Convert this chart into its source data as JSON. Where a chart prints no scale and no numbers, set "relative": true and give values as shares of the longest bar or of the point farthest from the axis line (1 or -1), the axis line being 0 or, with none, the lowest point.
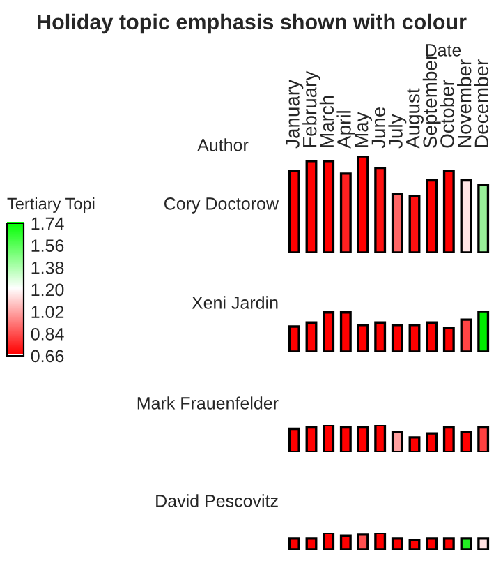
{
  "chart_data": [
    {
      "type": "bar",
      "title": "Holiday topic emphasis shown with colour",
      "xlabel": "Date",
      "annotations": [
        "Author"
      ],
      "ylabel": "Cory Doctorow",
      "relative": true,
      "clabel": "Tertiary Topi",
      "clim": [
        0.66,
        1.74
      ],
      "cticks": [
        {
          "value": 0.66,
          "label": "0.66"
        },
        {
          "value": 0.84,
          "label": "0.84"
        },
        {
          "value": 1.02,
          "label": "1.02"
        },
        {
          "value": 1.2,
          "label": "1.20"
        },
        {
          "value": 1.38,
          "label": "1.38"
        },
        {
          "value": 1.56,
          "label": "1.56"
        },
        {
          "value": 1.74,
          "label": "1.74"
        }
      ],
      "categories": [
        "January",
        "February",
        "March",
        "April",
        "May",
        "June",
        "July",
        "August",
        "September",
        "October",
        "November",
        "December"
      ],
      "values": [
        0.85,
        0.95,
        0.95,
        0.82,
        1.0,
        0.88,
        0.61,
        0.59,
        0.75,
        0.85,
        0.75,
        0.7
      ],
      "colors": [
        "#ff0000",
        "#ff0000",
        "#ff0000",
        "#ff2020",
        "#ff0000",
        "#ff1010",
        "#ff6666",
        "#ff1010",
        "#ff0000",
        "#ff0000",
        "#ffe6e6",
        "#99f099"
      ]
    },
    {
      "type": "bar",
      "ylabel": "Xeni Jardin",
      "relative": true,
      "categories": [
        null,
        null,
        null,
        null,
        null,
        null,
        null,
        null,
        null,
        null,
        null,
        null
      ],
      "values": [
        0.62,
        0.72,
        0.97,
        0.97,
        0.66,
        0.72,
        0.66,
        0.66,
        0.72,
        0.59,
        0.79,
        1.0
      ],
      "colors": [
        "#ff0000",
        "#ff0000",
        "#ff0000",
        "#ff0000",
        "#ff0000",
        "#ff0000",
        "#ff0000",
        "#ff0000",
        "#ff0000",
        "#ff0000",
        "#ff4444",
        "#00ee00"
      ]
    },
    {
      "type": "bar",
      "ylabel": "Mark Frauenfelder",
      "relative": true,
      "categories": [
        null,
        null,
        null,
        null,
        null,
        null,
        null,
        null,
        null,
        null,
        null,
        null
      ],
      "values": [
        0.86,
        0.91,
        1.0,
        0.91,
        0.91,
        1.0,
        0.74,
        0.54,
        0.69,
        0.91,
        0.74,
        0.91
      ],
      "colors": [
        "#ff0000",
        "#ff0000",
        "#ff0000",
        "#ff0000",
        "#ff0000",
        "#ff0000",
        "#ffa0a0",
        "#ff0000",
        "#ff0000",
        "#ff0000",
        "#ff0000",
        "#ff4040"
      ]
    },
    {
      "type": "bar",
      "ylabel": "David Pescovitz",
      "relative": true,
      "categories": [
        null,
        null,
        null,
        null,
        null,
        null,
        null,
        null,
        null,
        null,
        null,
        null
      ],
      "values": [
        0.67,
        0.67,
        1.0,
        0.83,
        0.92,
        1.0,
        0.67,
        0.58,
        0.67,
        0.67,
        0.67,
        0.67
      ],
      "colors": [
        "#ff0000",
        "#ff0000",
        "#ff0000",
        "#ff0000",
        "#ff5050",
        "#ff0000",
        "#ff0000",
        "#ff0000",
        "#ff0000",
        "#ff0000",
        "#22ee22",
        "#ffe0e0"
      ]
    }
  ]
}
